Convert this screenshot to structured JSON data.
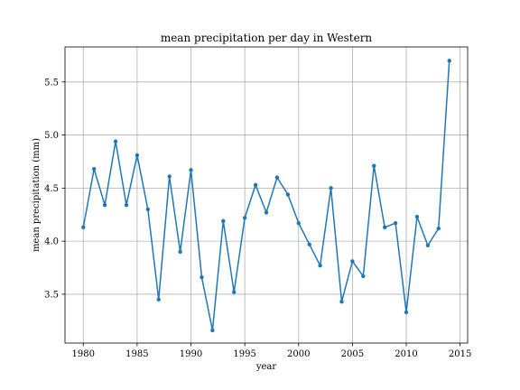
{
  "chart_data": {
    "type": "line",
    "title": "mean precipitation per day in Western",
    "xlabel": "year",
    "ylabel": "mean precipitation (mm)",
    "xlim": [
      1978.3,
      2015.7
    ],
    "ylim": [
      3.04,
      5.83
    ],
    "grid": true,
    "x_ticks": [
      1980,
      1985,
      1990,
      1995,
      2000,
      2005,
      2010,
      2015
    ],
    "y_ticks": [
      3.5,
      4.0,
      4.5,
      5.0,
      5.5
    ],
    "x_tick_labels": [
      "1980",
      "1985",
      "1990",
      "1995",
      "2000",
      "2005",
      "2010",
      "2015"
    ],
    "y_tick_labels": [
      "3.5",
      "4.0",
      "4.5",
      "5.0",
      "5.5"
    ],
    "series": [
      {
        "color": "#1f77b4",
        "marker": "circle",
        "x": [
          1980,
          1981,
          1982,
          1983,
          1984,
          1985,
          1986,
          1987,
          1988,
          1989,
          1990,
          1991,
          1992,
          1993,
          1994,
          1995,
          1996,
          1997,
          1998,
          1999,
          2000,
          2001,
          2002,
          2003,
          2004,
          2005,
          2006,
          2007,
          2008,
          2009,
          2010,
          2011,
          2012,
          2013,
          2014
        ],
        "values": [
          4.13,
          4.68,
          4.34,
          4.94,
          4.34,
          4.81,
          4.3,
          3.45,
          4.61,
          3.9,
          4.67,
          3.66,
          3.16,
          4.19,
          3.52,
          4.22,
          4.53,
          4.27,
          4.6,
          4.44,
          4.17,
          3.97,
          3.77,
          4.5,
          3.43,
          3.81,
          3.67,
          4.71,
          4.13,
          4.17,
          3.33,
          4.23,
          3.96,
          4.12,
          5.7
        ]
      }
    ]
  }
}
